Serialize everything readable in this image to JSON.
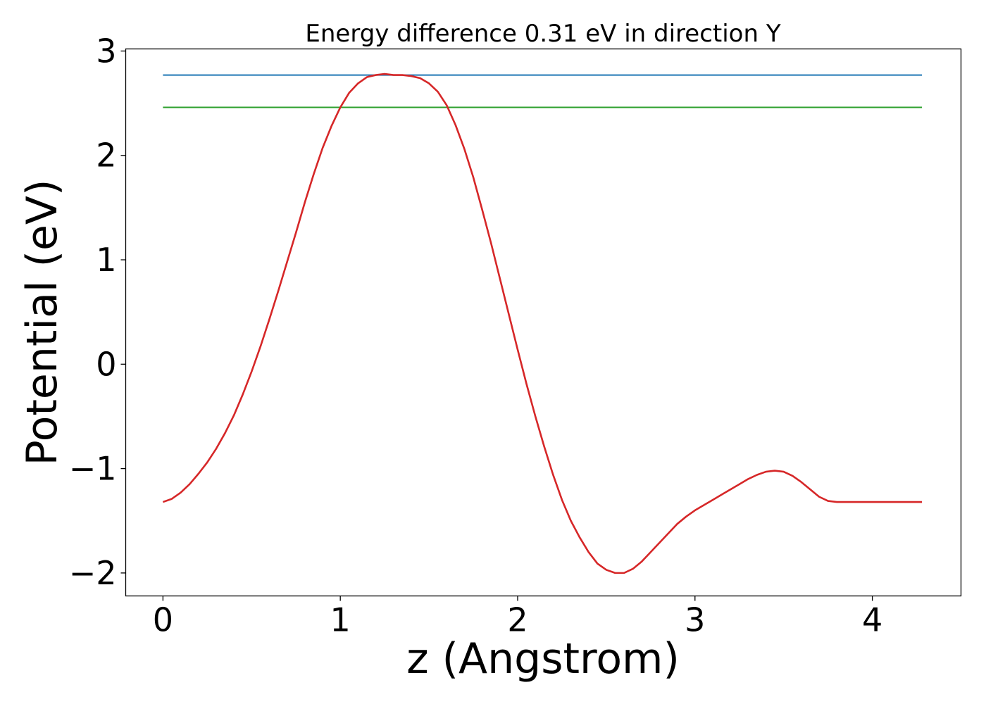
{
  "chart_data": {
    "type": "line",
    "title": "Energy difference 0.31 eV in direction Y",
    "xlabel": "z (Angstrom)",
    "ylabel": "Potential (eV)",
    "xlim": [
      -0.21,
      4.5
    ],
    "ylim": [
      -2.22,
      3.02
    ],
    "xticks": [
      0,
      1,
      2,
      3,
      4
    ],
    "xtick_labels": [
      "0",
      "1",
      "2",
      "3",
      "4"
    ],
    "yticks": [
      -2,
      -1,
      0,
      1,
      2,
      3
    ],
    "ytick_labels": [
      "−2",
      "−1",
      "0",
      "1",
      "2",
      "3"
    ],
    "grid": false,
    "series": [
      {
        "color": "#1f77b4",
        "x": [
          0,
          4.28
        ],
        "y": [
          2.77,
          2.77
        ]
      },
      {
        "color": "#2ca02c",
        "x": [
          0,
          4.28
        ],
        "y": [
          2.46,
          2.46
        ]
      },
      {
        "color": "#d62728",
        "x": [
          0,
          0.05,
          0.1,
          0.15,
          0.2,
          0.25,
          0.3,
          0.35,
          0.4,
          0.45,
          0.5,
          0.55,
          0.6,
          0.65,
          0.7,
          0.75,
          0.8,
          0.85,
          0.9,
          0.95,
          1.0,
          1.05,
          1.1,
          1.15,
          1.2,
          1.25,
          1.3,
          1.35,
          1.4,
          1.45,
          1.5,
          1.55,
          1.6,
          1.65,
          1.7,
          1.75,
          1.8,
          1.85,
          1.9,
          1.95,
          2.0,
          2.05,
          2.1,
          2.15,
          2.2,
          2.25,
          2.3,
          2.35,
          2.4,
          2.45,
          2.5,
          2.55,
          2.6,
          2.65,
          2.7,
          2.75,
          2.8,
          2.85,
          2.9,
          2.95,
          3.0,
          3.05,
          3.1,
          3.15,
          3.2,
          3.25,
          3.3,
          3.35,
          3.4,
          3.45,
          3.5,
          3.55,
          3.6,
          3.65,
          3.7,
          3.75,
          3.8,
          3.85,
          3.9,
          3.95,
          4.0,
          4.05,
          4.1,
          4.15,
          4.2,
          4.25,
          4.28
        ],
        "y": [
          -1.32,
          -1.29,
          -1.23,
          -1.15,
          -1.05,
          -0.94,
          -0.81,
          -0.66,
          -0.49,
          -0.29,
          -0.07,
          0.17,
          0.43,
          0.7,
          0.98,
          1.26,
          1.55,
          1.82,
          2.07,
          2.28,
          2.46,
          2.6,
          2.69,
          2.75,
          2.77,
          2.78,
          2.77,
          2.77,
          2.76,
          2.74,
          2.69,
          2.61,
          2.48,
          2.29,
          2.06,
          1.79,
          1.48,
          1.16,
          0.82,
          0.48,
          0.14,
          -0.19,
          -0.5,
          -0.79,
          -1.06,
          -1.3,
          -1.5,
          -1.66,
          -1.8,
          -1.91,
          -1.97,
          -2.0,
          -2.0,
          -1.96,
          -1.89,
          -1.8,
          -1.71,
          -1.62,
          -1.53,
          -1.46,
          -1.4,
          -1.35,
          -1.3,
          -1.25,
          -1.2,
          -1.15,
          -1.1,
          -1.06,
          -1.03,
          -1.02,
          -1.03,
          -1.07,
          -1.13,
          -1.2,
          -1.27,
          -1.31,
          -1.32,
          -1.32,
          -1.32,
          -1.32,
          -1.32,
          -1.32,
          -1.32,
          -1.32,
          -1.32,
          -1.32,
          -1.32
        ]
      }
    ]
  }
}
